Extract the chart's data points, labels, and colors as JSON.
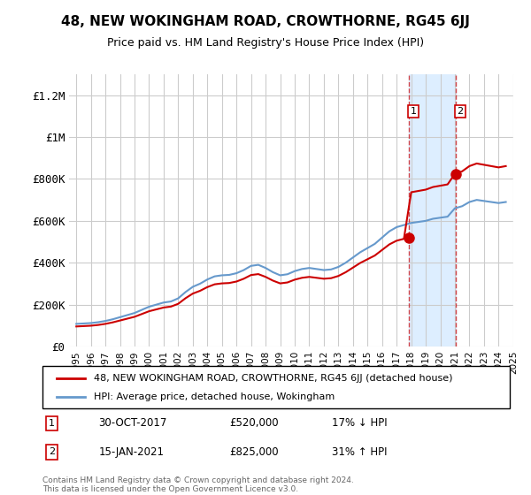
{
  "title": "48, NEW WOKINGHAM ROAD, CROWTHORNE, RG45 6JJ",
  "subtitle": "Price paid vs. HM Land Registry's House Price Index (HPI)",
  "footer": "Contains HM Land Registry data © Crown copyright and database right 2024.\nThis data is licensed under the Open Government Licence v3.0.",
  "legend_line1": "48, NEW WOKINGHAM ROAD, CROWTHORNE, RG45 6JJ (detached house)",
  "legend_line2": "HPI: Average price, detached house, Wokingham",
  "sale1_label": "1",
  "sale1_date": "30-OCT-2017",
  "sale1_price": "£520,000",
  "sale1_hpi": "17% ↓ HPI",
  "sale2_label": "2",
  "sale2_date": "15-JAN-2021",
  "sale2_price": "£825,000",
  "sale2_hpi": "31% ↑ HPI",
  "red_color": "#cc0000",
  "blue_color": "#6699cc",
  "shaded_color": "#ddeeff",
  "background_color": "#ffffff",
  "grid_color": "#cccccc",
  "ylim": [
    0,
    1300000
  ],
  "yticks": [
    0,
    200000,
    400000,
    600000,
    800000,
    1000000,
    1200000
  ],
  "ytick_labels": [
    "£0",
    "£200K",
    "£400K",
    "£600K",
    "£800K",
    "£1M",
    "£1.2M"
  ],
  "sale1_x": 2017.83,
  "sale1_y": 520000,
  "sale2_x": 2021.04,
  "sale2_y": 825000,
  "xmin": 1994.5,
  "xmax": 2025.5
}
